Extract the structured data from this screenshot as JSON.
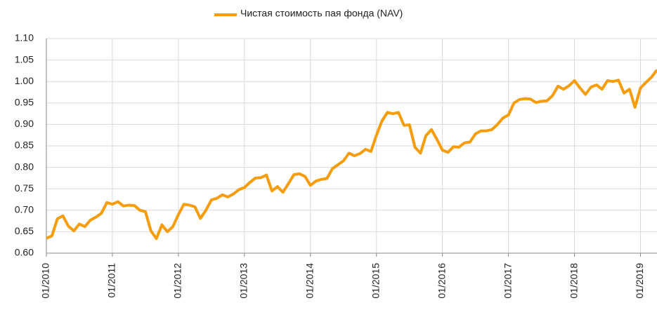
{
  "chart_data": {
    "type": "line",
    "categories": [
      "01/2010",
      null,
      null,
      null,
      null,
      null,
      null,
      null,
      null,
      null,
      null,
      null,
      "01/2011",
      null,
      null,
      null,
      null,
      null,
      null,
      null,
      null,
      null,
      null,
      null,
      "01/2012",
      null,
      null,
      null,
      null,
      null,
      null,
      null,
      null,
      null,
      null,
      null,
      "01/2013",
      null,
      null,
      null,
      null,
      null,
      null,
      null,
      null,
      null,
      null,
      null,
      "01/2014",
      null,
      null,
      null,
      null,
      null,
      null,
      null,
      null,
      null,
      null,
      null,
      "01/2015",
      null,
      null,
      null,
      null,
      null,
      null,
      null,
      null,
      null,
      null,
      null,
      "01/2016",
      null,
      null,
      null,
      null,
      null,
      null,
      null,
      null,
      null,
      null,
      null,
      "01/2017",
      null,
      null,
      null,
      null,
      null,
      null,
      null,
      null,
      null,
      null,
      null,
      "01/2018",
      null,
      null,
      null,
      null,
      null,
      null,
      null,
      null,
      null,
      null,
      null,
      "01/2019",
      null,
      null,
      null
    ],
    "series": [
      {
        "name": "Чистая стоимость пая фонда (NAV)",
        "color": "#f59d0c",
        "values": [
          0.635,
          0.64,
          0.68,
          0.687,
          0.663,
          0.652,
          0.668,
          0.662,
          0.677,
          0.684,
          0.693,
          0.718,
          0.714,
          0.72,
          0.71,
          0.712,
          0.711,
          0.7,
          0.697,
          0.652,
          0.634,
          0.666,
          0.65,
          0.662,
          0.69,
          0.714,
          0.712,
          0.708,
          0.681,
          0.7,
          0.724,
          0.728,
          0.736,
          0.731,
          0.738,
          0.748,
          0.753,
          0.765,
          0.775,
          0.776,
          0.782,
          0.745,
          0.755,
          0.742,
          0.762,
          0.783,
          0.785,
          0.779,
          0.758,
          0.768,
          0.772,
          0.774,
          0.797,
          0.806,
          0.815,
          0.833,
          0.827,
          0.832,
          0.842,
          0.837,
          0.875,
          0.908,
          0.928,
          0.925,
          0.928,
          0.898,
          0.899,
          0.847,
          0.833,
          0.874,
          0.888,
          0.865,
          0.84,
          0.835,
          0.848,
          0.847,
          0.857,
          0.859,
          0.878,
          0.885,
          0.885,
          0.888,
          0.9,
          0.915,
          0.922,
          0.95,
          0.958,
          0.96,
          0.959,
          0.951,
          0.954,
          0.955,
          0.967,
          0.989,
          0.982,
          0.99,
          1.002,
          0.985,
          0.97,
          0.987,
          0.992,
          0.982,
          1.002,
          1.0,
          1.003,
          0.973,
          0.982,
          0.94,
          0.985,
          0.998,
          1.01,
          1.027
        ]
      }
    ],
    "ylim": [
      0.6,
      1.1
    ],
    "yticks": [
      {
        "value": 0.6,
        "label": "0.60"
      },
      0.65,
      {
        "value": 0.7,
        "label": "0.70"
      },
      0.75,
      {
        "value": 0.8,
        "label": "0.80"
      },
      0.85,
      {
        "value": 0.9,
        "label": "0.90"
      },
      0.95,
      {
        "value": 1.0,
        "label": "1.00"
      },
      1.05,
      {
        "value": 1.1,
        "label": "1.10"
      }
    ],
    "grid": true,
    "legend": "top"
  }
}
